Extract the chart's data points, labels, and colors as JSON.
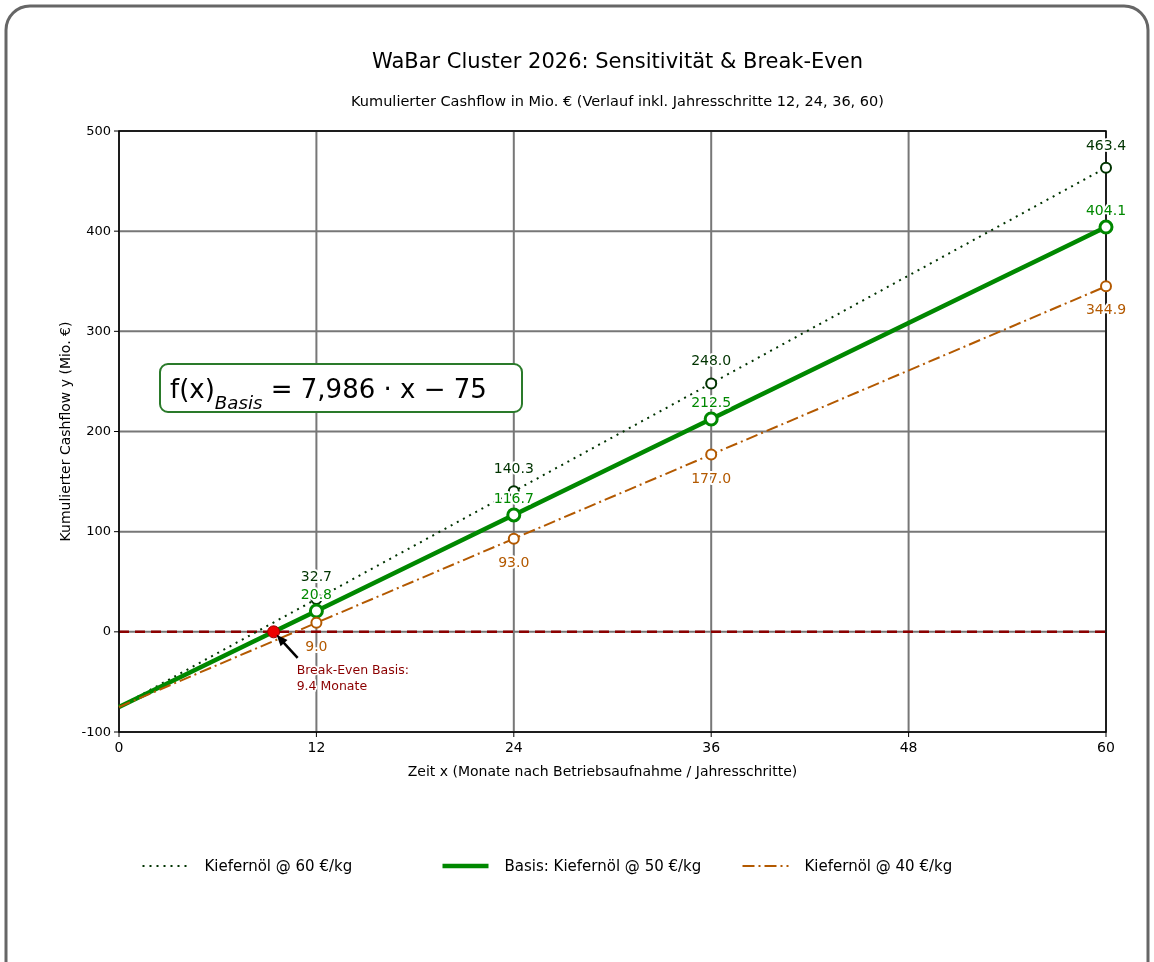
{
  "chart_data": {
    "type": "line",
    "title": "WaBar Cluster 2026: Sensitivität & Break-Even",
    "subtitle": "Kumulierter Cashflow in Mio. € (Verlauf inkl. Jahresschritte 12, 24, 36, 60)",
    "xlabel": "Zeit x (Monate nach Betriebsaufnahme / Jahresschritte)",
    "ylabel": "Kumulierter Cashflow y (Mio. €)",
    "xlim": [
      0,
      60
    ],
    "xticks": [
      0,
      12,
      24,
      36,
      48,
      60
    ],
    "ylim": [
      -100,
      500
    ],
    "yticks": [
      -100,
      0,
      100,
      200,
      300,
      400,
      500
    ],
    "grid": true,
    "legend": "bottom",
    "marker": "circle",
    "series": [
      {
        "name": "Kiefernöl @ 60 €/kg",
        "color": "#003300",
        "line_style": "dotted",
        "x": [
          0,
          12,
          24,
          36,
          60
        ],
        "values": [
          -75,
          32.7,
          140.3,
          248.0,
          463.4
        ],
        "value_labels": [
          null,
          "32.7",
          "140.3",
          "248.0",
          "463.4"
        ]
      },
      {
        "name": "Basis: Kiefernöl @ 50 €/kg",
        "color": "#008800",
        "line_style": "solid",
        "x": [
          0,
          12,
          24,
          36,
          60
        ],
        "values": [
          -75,
          20.8,
          116.7,
          212.5,
          404.1
        ],
        "value_labels": [
          null,
          "20.8",
          "116.7",
          "212.5",
          "404.1"
        ]
      },
      {
        "name": "Kiefernöl @ 40 €/kg",
        "color": "#b35900",
        "line_style": "dashdot",
        "x": [
          0,
          12,
          24,
          36,
          60
        ],
        "values": [
          -75,
          9.0,
          93.0,
          177.0,
          344.9
        ],
        "value_labels": [
          null,
          "9.0",
          "93.0",
          "177.0",
          "344.9"
        ]
      },
      {
        "type": "scatter",
        "color": "#ee0000",
        "x": [
          9.4
        ],
        "values": [
          0
        ]
      }
    ],
    "ref_lines": [
      {
        "axis": "y",
        "value": 0,
        "color": "#8b0000",
        "line_style": "dashed"
      }
    ],
    "annotations": [
      "f(x)$_{Basis}$ = 7,986 · x − 75",
      "Break-Even Basis:\n9.4 Monate"
    ]
  }
}
